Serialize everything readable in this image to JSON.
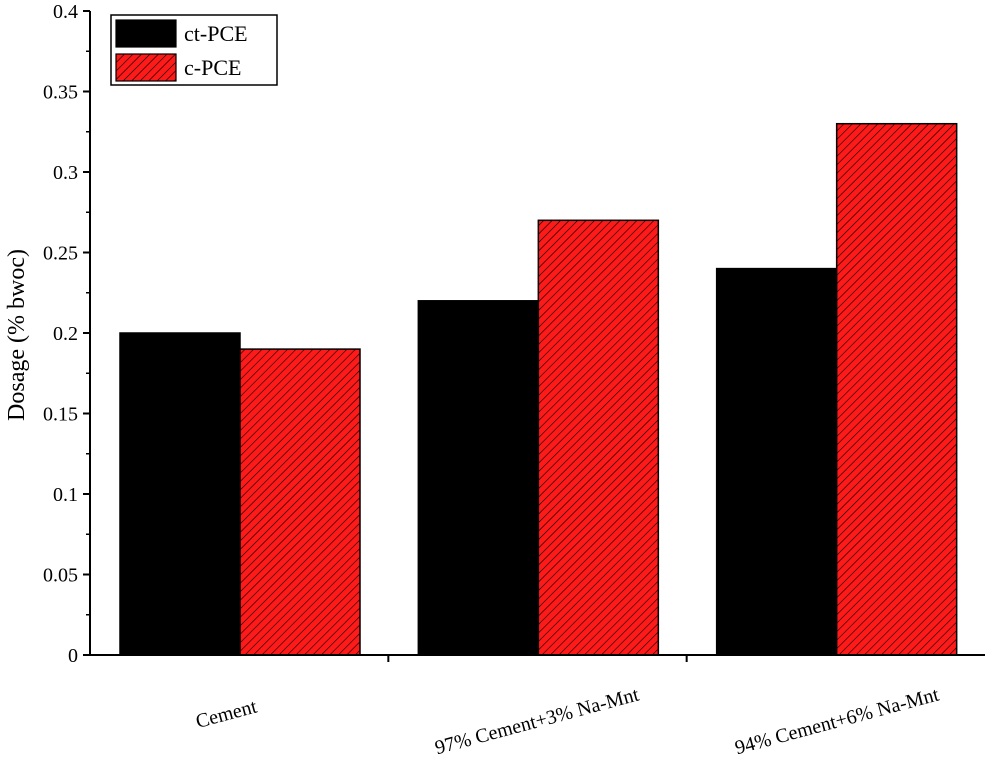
{
  "chart_data": {
    "type": "bar",
    "title": "",
    "xlabel": "",
    "ylabel": "Dosage (% bwoc)",
    "ylim": [
      0,
      0.4
    ],
    "yticks": [
      "0",
      "0.05",
      "0.1",
      "0.15",
      "0.2",
      "0.25",
      "0.3",
      "0.35",
      "0.4"
    ],
    "grid": false,
    "legend": "top-left",
    "categories": [
      "Cement",
      "97% Cement+3% Na-Mnt",
      "94% Cement+6% Na-Mnt"
    ],
    "series": [
      {
        "name": "ct-PCE",
        "values": [
          0.2,
          0.22,
          0.24
        ],
        "color": "#000000",
        "pattern": "solid"
      },
      {
        "name": "c-PCE",
        "values": [
          0.19,
          0.27,
          0.33
        ],
        "color": "#ff0000",
        "pattern": "hatched"
      }
    ]
  }
}
